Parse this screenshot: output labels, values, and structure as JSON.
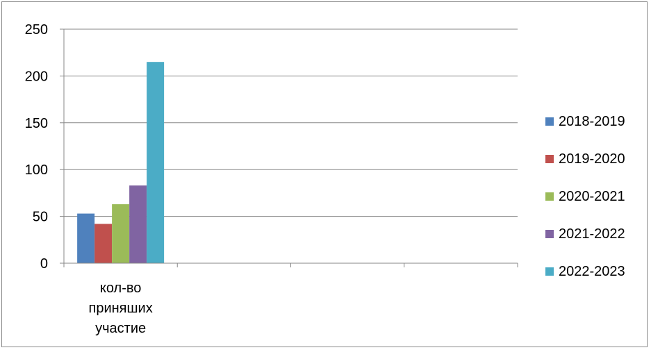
{
  "chart_data": {
    "type": "bar",
    "title": "",
    "xlabel": "",
    "ylabel": "",
    "ylim": [
      0,
      250
    ],
    "yticks": [
      0,
      50,
      100,
      150,
      200,
      250
    ],
    "grid": true,
    "legend_position": "right",
    "categories": [
      [
        "кол-во",
        "приняших",
        "участие"
      ],
      "",
      "",
      ""
    ],
    "series": [
      {
        "name": "2018-2019",
        "color": "#4F81BD",
        "values": [
          53,
          null,
          null,
          null
        ]
      },
      {
        "name": "2019-2020",
        "color": "#C0504D",
        "values": [
          42,
          null,
          null,
          null
        ]
      },
      {
        "name": "2020-2021",
        "color": "#9BBB59",
        "values": [
          63,
          null,
          null,
          null
        ]
      },
      {
        "name": "2021-2022",
        "color": "#8064A2",
        "values": [
          83,
          null,
          null,
          null
        ]
      },
      {
        "name": "2022-2023",
        "color": "#4BACC6",
        "values": [
          215,
          null,
          null,
          null
        ]
      }
    ]
  }
}
